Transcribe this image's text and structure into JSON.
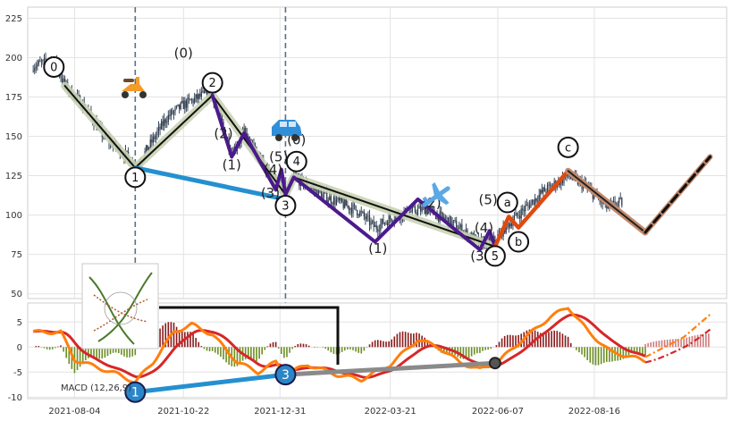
{
  "chart_data": [
    {
      "type": "candlestick",
      "xlim": [
        "2021-07-01",
        "2022-11-20"
      ],
      "ylim": [
        47,
        232
      ],
      "ytick_labels": [
        "50",
        "75",
        "100",
        "125",
        "150",
        "175",
        "200",
        "225"
      ],
      "xtick_labels": [
        "2021-08-04",
        "2021-10-22",
        "2021-12-31",
        "2022-03-21",
        "2022-06-07",
        "2022-08-16"
      ],
      "grid": true,
      "price_anchors": [
        {
          "x": "2021-07-05",
          "y": 195
        },
        {
          "x": "2021-07-20",
          "y": 198
        },
        {
          "x": "2021-07-28",
          "y": 182
        },
        {
          "x": "2021-08-12",
          "y": 168
        },
        {
          "x": "2021-08-25",
          "y": 150
        },
        {
          "x": "2021-09-10",
          "y": 138
        },
        {
          "x": "2021-09-17",
          "y": 130
        },
        {
          "x": "2021-09-28",
          "y": 145
        },
        {
          "x": "2021-10-10",
          "y": 162
        },
        {
          "x": "2021-10-22",
          "y": 170
        },
        {
          "x": "2021-11-05",
          "y": 176
        },
        {
          "x": "2021-11-12",
          "y": 176
        },
        {
          "x": "2021-11-26",
          "y": 140
        },
        {
          "x": "2021-12-05",
          "y": 152
        },
        {
          "x": "2021-12-20",
          "y": 130
        },
        {
          "x": "2021-12-28",
          "y": 122
        },
        {
          "x": "2022-01-04",
          "y": 113
        },
        {
          "x": "2022-01-10",
          "y": 124
        },
        {
          "x": "2022-02-01",
          "y": 112
        },
        {
          "x": "2022-02-25",
          "y": 103
        },
        {
          "x": "2022-03-10",
          "y": 92
        },
        {
          "x": "2022-03-25",
          "y": 100
        },
        {
          "x": "2022-04-15",
          "y": 104
        },
        {
          "x": "2022-05-05",
          "y": 95
        },
        {
          "x": "2022-05-25",
          "y": 82
        },
        {
          "x": "2022-06-05",
          "y": 84
        },
        {
          "x": "2022-06-12",
          "y": 92
        },
        {
          "x": "2022-06-25",
          "y": 103
        },
        {
          "x": "2022-07-10",
          "y": 115
        },
        {
          "x": "2022-07-28",
          "y": 125
        },
        {
          "x": "2022-08-10",
          "y": 118
        },
        {
          "x": "2022-08-25",
          "y": 105
        },
        {
          "x": "2022-09-05",
          "y": 108
        }
      ],
      "elliott_lines": [
        {
          "style": "black-main",
          "points": [
            [
              "2021-07-28",
              182
            ],
            [
              "2021-09-17",
              130
            ],
            [
              "2021-11-12",
              176
            ],
            [
              "2022-01-04",
              113
            ],
            [
              "2022-01-10",
              124
            ],
            [
              "2022-06-05",
              80
            ]
          ]
        },
        {
          "style": "purple-waves",
          "points": [
            [
              "2021-11-12",
              176
            ],
            [
              "2021-11-26",
              137
            ],
            [
              "2021-12-05",
              152
            ],
            [
              "2021-12-28",
              116
            ],
            [
              "2022-01-01",
              129
            ],
            [
              "2022-01-04",
              113
            ],
            [
              "2022-01-10",
              124
            ],
            [
              "2022-03-10",
              83
            ],
            [
              "2022-04-10",
              110
            ],
            [
              "2022-05-25",
              78
            ],
            [
              "2022-06-01",
              90
            ],
            [
              "2022-06-05",
              80
            ]
          ]
        },
        {
          "style": "orange-abc",
          "points": [
            [
              "2022-06-05",
              80
            ],
            [
              "2022-06-15",
              99
            ],
            [
              "2022-06-22",
              92
            ],
            [
              "2022-07-28",
              128
            ]
          ]
        },
        {
          "style": "brown-projection",
          "points": [
            [
              "2022-07-28",
              128
            ],
            [
              "2022-09-22",
              89
            ]
          ]
        },
        {
          "style": "dash-projection",
          "points": [
            [
              "2022-09-22",
              89
            ],
            [
              "2022-11-08",
              137
            ]
          ]
        },
        {
          "style": "blue-divergence",
          "points": [
            [
              "2021-09-17",
              130
            ],
            [
              "2022-01-04",
              110
            ]
          ]
        }
      ],
      "wave_labels": [
        {
          "x": "2021-10-22",
          "y": 200,
          "text": "(0)"
        },
        {
          "x": "2021-11-20",
          "y": 149,
          "text": "(2)"
        },
        {
          "x": "2021-11-26",
          "y": 129,
          "text": "(1)"
        },
        {
          "x": "2021-12-26",
          "y": 126,
          "text": "(4)"
        },
        {
          "x": "2021-12-30",
          "y": 134,
          "text": "(5)"
        },
        {
          "x": "2022-01-12",
          "y": 145,
          "text": "(0)"
        },
        {
          "x": "2021-12-24",
          "y": 111,
          "text": "(3)"
        },
        {
          "x": "2022-03-12",
          "y": 76,
          "text": "(1)"
        },
        {
          "x": "2022-04-20",
          "y": 105,
          "text": "(2)"
        },
        {
          "x": "2022-05-25",
          "y": 71,
          "text": "(3)"
        },
        {
          "x": "2022-05-28",
          "y": 89,
          "text": "(4)"
        },
        {
          "x": "2022-05-31",
          "y": 107,
          "text": "(5)"
        }
      ],
      "circle_labels": [
        {
          "x": "2021-07-20",
          "y": 194,
          "text": "0"
        },
        {
          "x": "2021-09-17",
          "y": 124,
          "text": "1"
        },
        {
          "x": "2021-11-12",
          "y": 184,
          "text": "2"
        },
        {
          "x": "2022-01-04",
          "y": 106,
          "text": "3"
        },
        {
          "x": "2022-01-12",
          "y": 134,
          "text": "4"
        },
        {
          "x": "2022-06-05",
          "y": 74,
          "text": "5"
        },
        {
          "x": "2022-06-14",
          "y": 108,
          "text": "a"
        },
        {
          "x": "2022-06-22",
          "y": 83,
          "text": "b"
        },
        {
          "x": "2022-07-28",
          "y": 143,
          "text": "c"
        }
      ],
      "vlines": [
        "2021-09-17",
        "2022-01-04"
      ]
    },
    {
      "type": "macd",
      "title": "MACD (12,26,9)",
      "ylim": [
        -10.3,
        8.8
      ],
      "ytick_labels": [
        "5",
        "0",
        "-5",
        "-10"
      ],
      "macd_anchors": [
        {
          "x": "2021-07-05",
          "y": 3.0
        },
        {
          "x": "2021-07-25",
          "y": 3.0
        },
        {
          "x": "2021-08-04",
          "y": -2.5
        },
        {
          "x": "2021-08-20",
          "y": -4.0
        },
        {
          "x": "2021-09-05",
          "y": -5.5
        },
        {
          "x": "2021-09-17",
          "y": -7.0
        },
        {
          "x": "2021-09-30",
          "y": -3.0
        },
        {
          "x": "2021-10-15",
          "y": 3.0
        },
        {
          "x": "2021-10-28",
          "y": 4.5
        },
        {
          "x": "2021-11-12",
          "y": 2.5
        },
        {
          "x": "2021-11-30",
          "y": -3.0
        },
        {
          "x": "2021-12-15",
          "y": -5.0
        },
        {
          "x": "2021-12-28",
          "y": -3.0
        },
        {
          "x": "2022-01-04",
          "y": -5.5
        },
        {
          "x": "2022-01-20",
          "y": -3.5
        },
        {
          "x": "2022-02-10",
          "y": -5.5
        },
        {
          "x": "2022-02-28",
          "y": -6.5
        },
        {
          "x": "2022-03-21",
          "y": -3.5
        },
        {
          "x": "2022-04-10",
          "y": 1.5
        },
        {
          "x": "2022-04-25",
          "y": 0.0
        },
        {
          "x": "2022-05-10",
          "y": -3.0
        },
        {
          "x": "2022-05-25",
          "y": -4.5
        },
        {
          "x": "2022-06-07",
          "y": -3.0
        },
        {
          "x": "2022-06-25",
          "y": 1.5
        },
        {
          "x": "2022-07-15",
          "y": 6.0
        },
        {
          "x": "2022-07-28",
          "y": 8.0
        },
        {
          "x": "2022-08-12",
          "y": 3.0
        },
        {
          "x": "2022-08-28",
          "y": -1.0
        },
        {
          "x": "2022-09-10",
          "y": -1.8
        },
        {
          "x": "2022-09-22",
          "y": -2.8
        }
      ],
      "projection_anchors": [
        {
          "x": "2022-09-22",
          "y": -2.0
        },
        {
          "x": "2022-10-20",
          "y": 2.0
        },
        {
          "x": "2022-11-08",
          "y": 6.5
        }
      ],
      "divergence_lines": [
        {
          "style": "blue",
          "points": [
            [
              "2021-09-17",
              -9.0
            ],
            [
              "2022-01-04",
              -5.5
            ]
          ]
        },
        {
          "style": "gray",
          "points": [
            [
              "2022-01-04",
              -5.5
            ],
            [
              "2022-06-05",
              -3.2
            ]
          ]
        }
      ],
      "circle_labels": [
        {
          "x": "2021-09-17",
          "y": -9.0,
          "text": "1"
        },
        {
          "x": "2022-01-04",
          "y": -5.5,
          "text": "3"
        }
      ],
      "colors": {
        "macd": "#ff7f0e",
        "signal": "#d62728",
        "hist_pos": "#8b1a1a",
        "hist_neg": "#6b8e23"
      }
    }
  ]
}
